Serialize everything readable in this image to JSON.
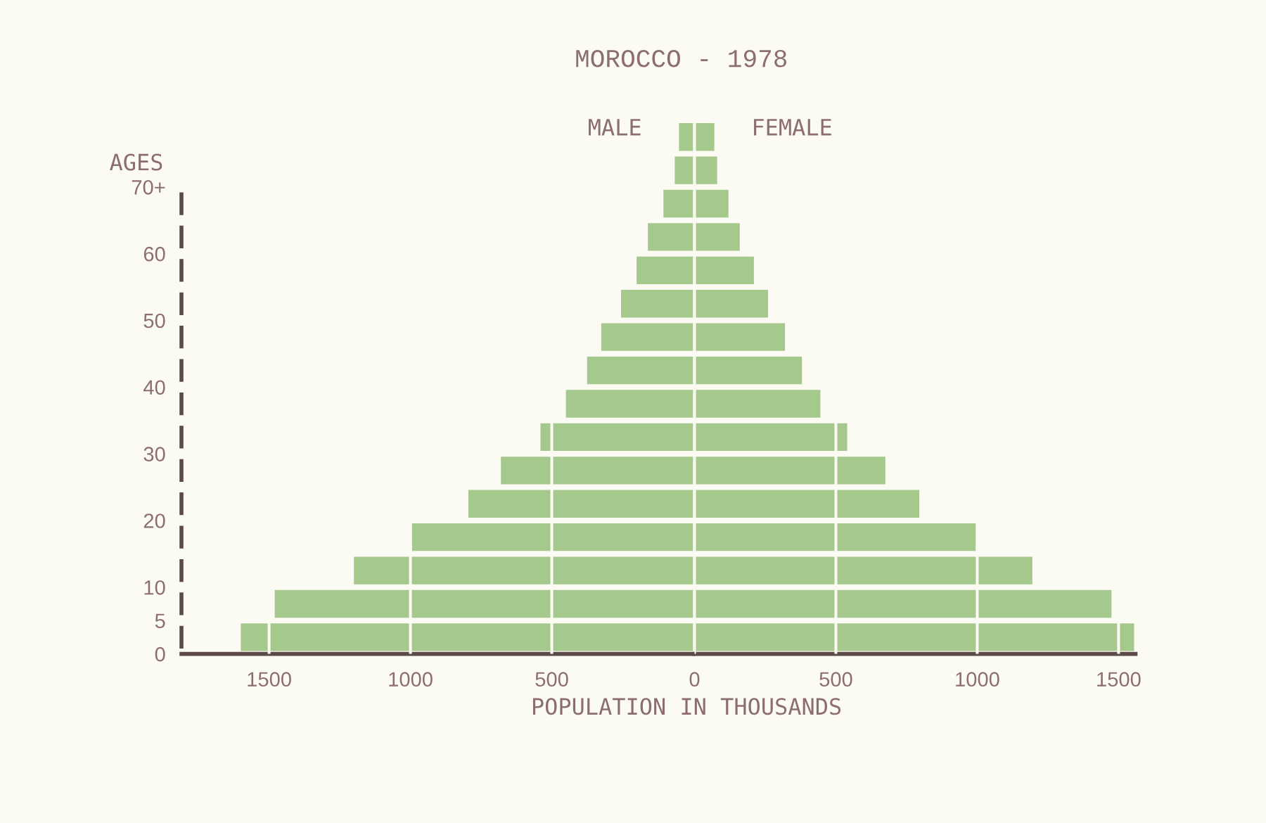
{
  "chart_data": [
    {
      "type": "bar",
      "orientation": "horizontal",
      "title": "MOROCCO - 1978",
      "xlabel": "POPULATION IN THOUSANDS",
      "ylabel": "AGES",
      "x": [
        2.5,
        7.5,
        12.5,
        17.5,
        22.5,
        27.5,
        32.5,
        37.5,
        42.5,
        47.5,
        52.5,
        57.5,
        62.5,
        67.5,
        72.5,
        77.5
      ],
      "series": [
        {
          "name": "MALE",
          "color": "#a5c88c",
          "values": [
            1600,
            1480,
            1200,
            995,
            795,
            680,
            540,
            450,
            375,
            325,
            255,
            200,
            160,
            105,
            65,
            50
          ]
        }
      ],
      "xlim": [
        1810,
        0
      ],
      "xticks": [
        1500,
        1000,
        500
      ],
      "ylim": [
        0,
        80
      ],
      "yticks": [
        0,
        5,
        10,
        20,
        30,
        40,
        50,
        60,
        {
          "value": 70,
          "label": "70+"
        }
      ],
      "grid": "x"
    },
    {
      "type": "bar",
      "orientation": "horizontal",
      "x": [
        2.5,
        7.5,
        12.5,
        17.5,
        22.5,
        27.5,
        32.5,
        37.5,
        42.5,
        47.5,
        52.5,
        57.5,
        62.5,
        67.5,
        72.5,
        77.5
      ],
      "series": [
        {
          "name": "FEMALE",
          "color": "#a5c88c",
          "values": [
            1555,
            1475,
            1195,
            995,
            795,
            675,
            540,
            445,
            380,
            320,
            260,
            210,
            160,
            120,
            80,
            70
          ]
        }
      ],
      "xlim": [
        0,
        1560
      ],
      "xticks": [
        0,
        500,
        1000,
        1500
      ],
      "ylim": [
        0,
        80
      ],
      "tick_labels": "x",
      "grid": "x"
    }
  ]
}
